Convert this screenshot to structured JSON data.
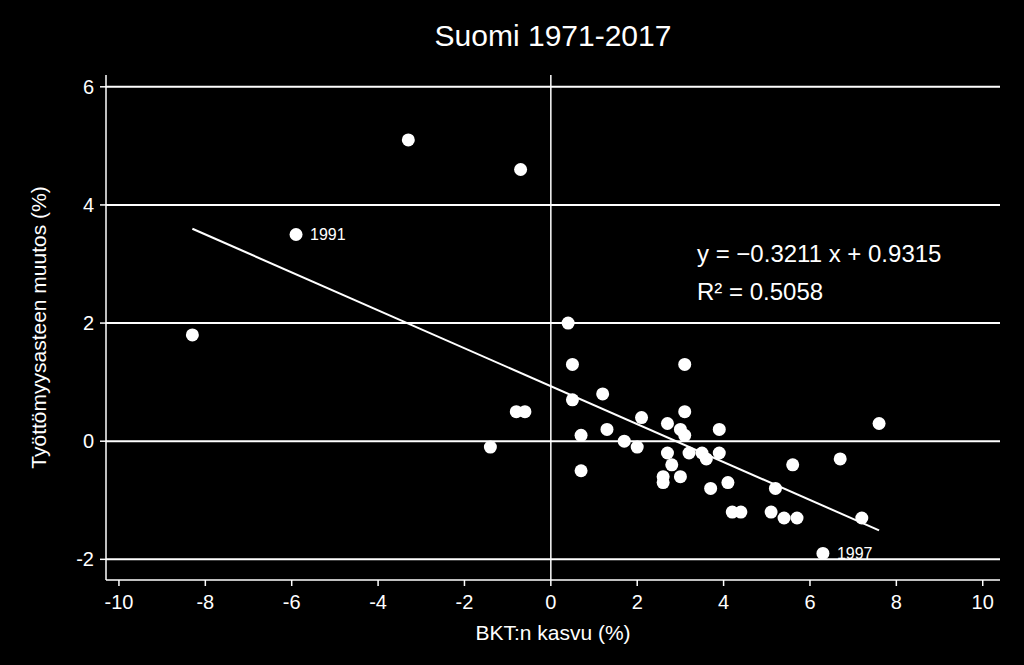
{
  "chart_data": {
    "type": "scatter",
    "title": "Suomi 1971-2017",
    "x_label": "BKT:n kasvu (%)",
    "y_label": "Työttömyysasteen muutos (%)",
    "xlim": [
      -10.3,
      10.4
    ],
    "ylim": [
      -2.35,
      6.2
    ],
    "xticks": [
      -10,
      -8,
      -6,
      -4,
      -2,
      0,
      2,
      4,
      6,
      8,
      10
    ],
    "yticks": [
      -2,
      0,
      2,
      4,
      6
    ],
    "grid": true,
    "series": [
      {
        "type": "scatter",
        "color": "#ffffff",
        "marker": "circle",
        "x": [
          -3.3,
          -0.7,
          -5.9,
          -8.3,
          0.4,
          0.5,
          3.1,
          0.5,
          1.2,
          -0.8,
          -0.6,
          3.1,
          0.7,
          0.7,
          1.3,
          1.7,
          2.0,
          2.1,
          2.7,
          3.0,
          3.1,
          2.7,
          2.8,
          2.6,
          2.6,
          3.0,
          3.2,
          3.5,
          3.6,
          3.7,
          3.9,
          3.9,
          4.1,
          4.2,
          4.4,
          5.1,
          5.2,
          5.4,
          5.7,
          5.6,
          6.7,
          7.2,
          7.6,
          6.3,
          -1.4
        ],
        "values": [
          5.1,
          4.6,
          3.5,
          1.8,
          2.0,
          1.3,
          1.3,
          0.7,
          0.8,
          0.5,
          0.5,
          0.5,
          0.1,
          -0.5,
          0.2,
          0.0,
          -0.1,
          0.4,
          0.3,
          0.2,
          0.1,
          -0.2,
          -0.4,
          -0.6,
          -0.7,
          -0.6,
          -0.2,
          -0.2,
          -0.3,
          -0.8,
          0.2,
          -0.2,
          -0.7,
          -1.2,
          -1.2,
          -1.2,
          -0.8,
          -1.3,
          -1.3,
          -0.4,
          -0.3,
          -1.3,
          0.3,
          -1.9,
          -0.1
        ]
      },
      {
        "type": "line",
        "color": "#ffffff",
        "line_style": "solid",
        "x": [
          -8.3,
          7.6
        ],
        "values": [
          3.5966,
          -1.5089
        ]
      }
    ],
    "annotations": [
      {
        "text": "1991",
        "x": -5.9,
        "y": 3.5
      },
      {
        "text": "1997",
        "x": 6.3,
        "y": -1.9
      },
      {
        "text": "y = −0.3211 x + 0.9315"
      },
      {
        "text": "R² = 0.5058"
      }
    ]
  }
}
